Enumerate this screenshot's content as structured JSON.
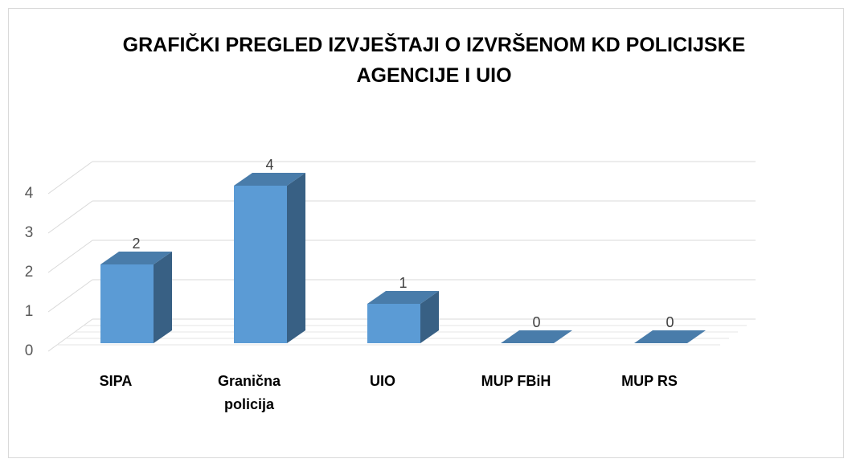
{
  "chart_data": {
    "type": "bar3d",
    "title": "GRAFIČKI PREGLED IZVJEŠTAJI O IZVRŠENOM KD POLICIJSKE AGENCIJE I UIO",
    "categories": [
      "SIPA",
      "Granična policija",
      "UIO",
      "MUP FBiH",
      "MUP RS"
    ],
    "values": [
      2,
      4,
      1,
      0,
      0
    ],
    "color": "#5b9bd5",
    "ylim": [
      0,
      4
    ],
    "yticks": [
      0,
      1,
      2,
      3,
      4
    ],
    "grid": true
  }
}
